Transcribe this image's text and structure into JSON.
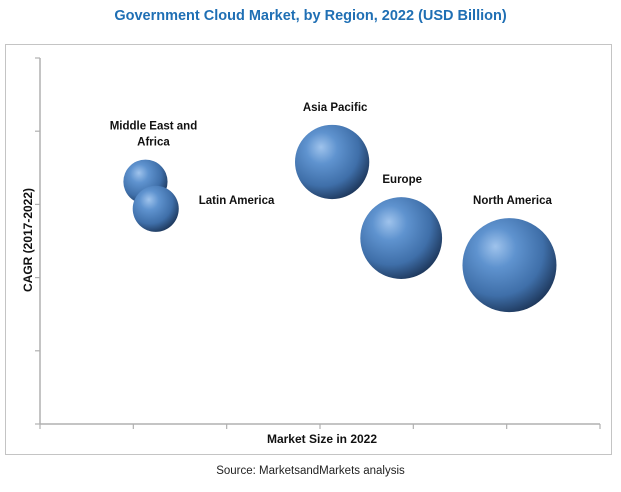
{
  "chart_data": {
    "type": "bubble",
    "title": "Government Cloud Market, by Region, 2022 (USD Billion)",
    "xlabel": "Market Size in 2022",
    "ylabel": "CAGR (2017-2022)",
    "xlim": [
      0,
      6
    ],
    "ylim": [
      0,
      5
    ],
    "x_ticks": [
      0,
      1,
      2,
      3,
      4,
      5,
      6
    ],
    "y_ticks": [
      0,
      1,
      2,
      3,
      4,
      5
    ],
    "tick_labels_shown": false,
    "grid": false,
    "legend": "none",
    "bubble_color": "#4a7fbf",
    "points": [
      {
        "name": "Middle East and Africa",
        "label_lines": [
          "Middle East and",
          "Africa"
        ],
        "x": 1.13,
        "y": 3.31,
        "size": 0.47,
        "label_pos": "above"
      },
      {
        "name": "Latin America",
        "label_lines": [
          "Latin America"
        ],
        "x": 1.24,
        "y": 2.94,
        "size": 0.49,
        "label_pos": "right"
      },
      {
        "name": "Asia Pacific",
        "label_lines": [
          "Asia Pacific"
        ],
        "x": 3.13,
        "y": 3.58,
        "size": 0.79,
        "label_pos": "above"
      },
      {
        "name": "Europe",
        "label_lines": [
          "Europe"
        ],
        "x": 3.87,
        "y": 2.54,
        "size": 0.87,
        "label_pos": "above"
      },
      {
        "name": "North America",
        "label_lines": [
          "North America"
        ],
        "x": 5.03,
        "y": 2.17,
        "size": 1.0,
        "label_pos": "above"
      }
    ]
  },
  "footer": {
    "source": "Source: MarketsandMarkets analysis"
  }
}
